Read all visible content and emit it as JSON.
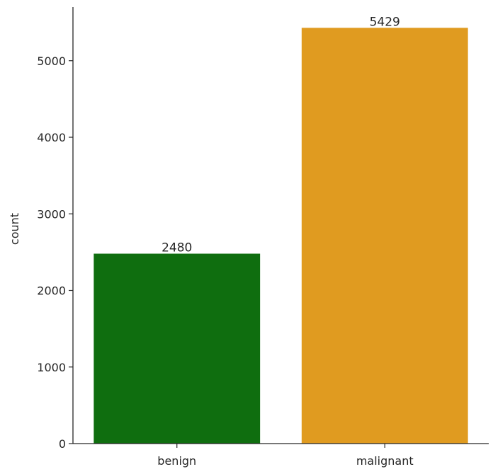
{
  "chart_data": {
    "type": "bar",
    "categories": [
      "benign",
      "malignant"
    ],
    "values": [
      2480,
      5429
    ],
    "data_labels": [
      "2480",
      "5429"
    ],
    "colors": [
      "#0f6e0f",
      "#e09b20"
    ],
    "xlabel": "",
    "ylabel": "count",
    "ylim": [
      0,
      5700
    ],
    "yticks": [
      0,
      1000,
      2000,
      3000,
      4000,
      5000
    ],
    "ytick_labels": [
      "0",
      "1000",
      "2000",
      "3000",
      "4000",
      "5000"
    ],
    "grid": false,
    "legend": "none",
    "spines": [
      "left",
      "bottom"
    ]
  }
}
